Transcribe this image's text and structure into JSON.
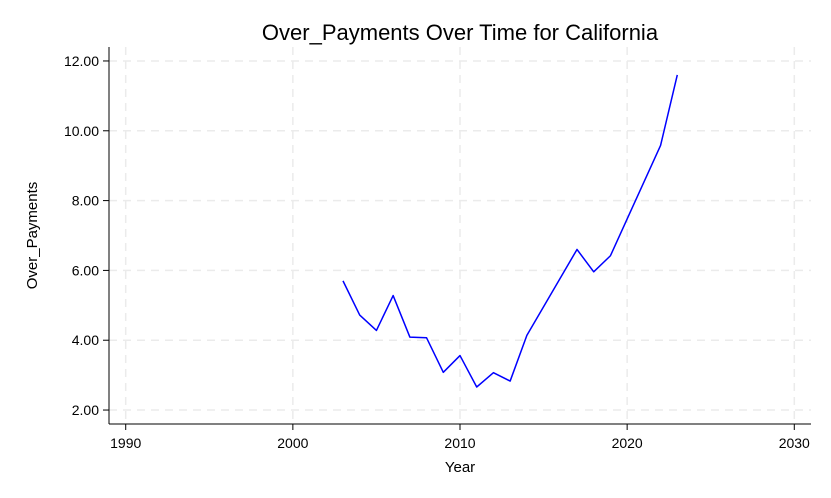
{
  "chart_data": {
    "type": "line",
    "title": "Over_Payments Over Time for California",
    "xlabel": "Year",
    "ylabel": "Over_Payments",
    "xlim": [
      1989,
      2031
    ],
    "ylim": [
      1.6,
      12.4
    ],
    "x_ticks": [
      1990,
      2000,
      2010,
      2020,
      2030
    ],
    "x_tick_labels": [
      "1990",
      "2000",
      "2010",
      "2020",
      "2030"
    ],
    "y_ticks": [
      2,
      4,
      6,
      8,
      10,
      12
    ],
    "y_tick_labels": [
      "2.00",
      "4.00",
      "6.00",
      "8.00",
      "10.00",
      "12.00"
    ],
    "grid": true,
    "series": [
      {
        "name": "Over_Payments",
        "color": "#0000ff",
        "x": [
          2003,
          2004,
          2005,
          2006,
          2007,
          2008,
          2009,
          2010,
          2011,
          2012,
          2013,
          2014,
          2017,
          2018,
          2019,
          2022,
          2023
        ],
        "values": [
          5.7,
          4.72,
          4.28,
          5.28,
          4.09,
          4.07,
          3.08,
          3.56,
          2.66,
          3.07,
          2.83,
          4.14,
          6.6,
          5.96,
          6.42,
          9.58,
          11.6
        ]
      }
    ]
  }
}
